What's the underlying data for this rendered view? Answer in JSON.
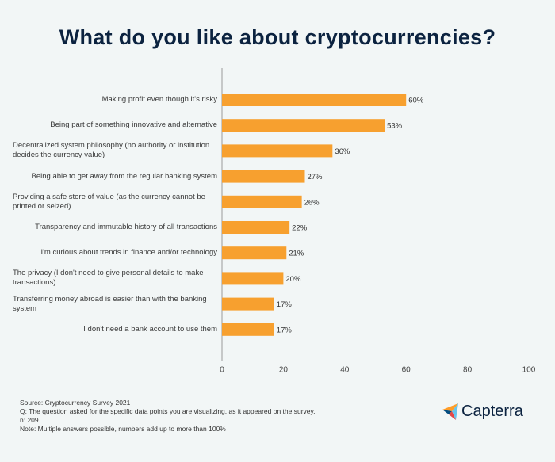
{
  "chart_data": {
    "type": "barh",
    "title": "What do you like about cryptocurrencies?",
    "categories": [
      "Making profit even though it's risky",
      "Being part of something innovative and alternative",
      "Decentralized system philosophy (no authority or institution decides the currency value)",
      "Being able to get away from the regular banking system",
      "Providing a safe store of value (as the currency cannot be printed or seized)",
      "Transparency and immutable history of all transactions",
      "I'm curious about trends in finance and/or technology",
      "The privacy (I don't need to give personal details to make transactions)",
      "Transferring money abroad is easier than with the banking system",
      "I don't need a bank account to use them"
    ],
    "values": [
      60,
      53,
      36,
      27,
      26,
      22,
      21,
      20,
      17,
      17
    ],
    "value_labels": [
      "60%",
      "53%",
      "36%",
      "27%",
      "26%",
      "22%",
      "21%",
      "20%",
      "17%",
      "17%"
    ],
    "color": "#f7a02f",
    "xlim": [
      0,
      100
    ],
    "xticks": [
      0,
      20,
      40,
      60,
      80,
      100
    ],
    "notes": [
      "Source: Cryptocurrency Survey 2021",
      "Q: The question asked for the specific data points you are visualizing, as it appeared on the survey.",
      "n: 209",
      "Note: Multiple answers possible, numbers add up to more than 100%"
    ]
  },
  "logo": "Capterra"
}
